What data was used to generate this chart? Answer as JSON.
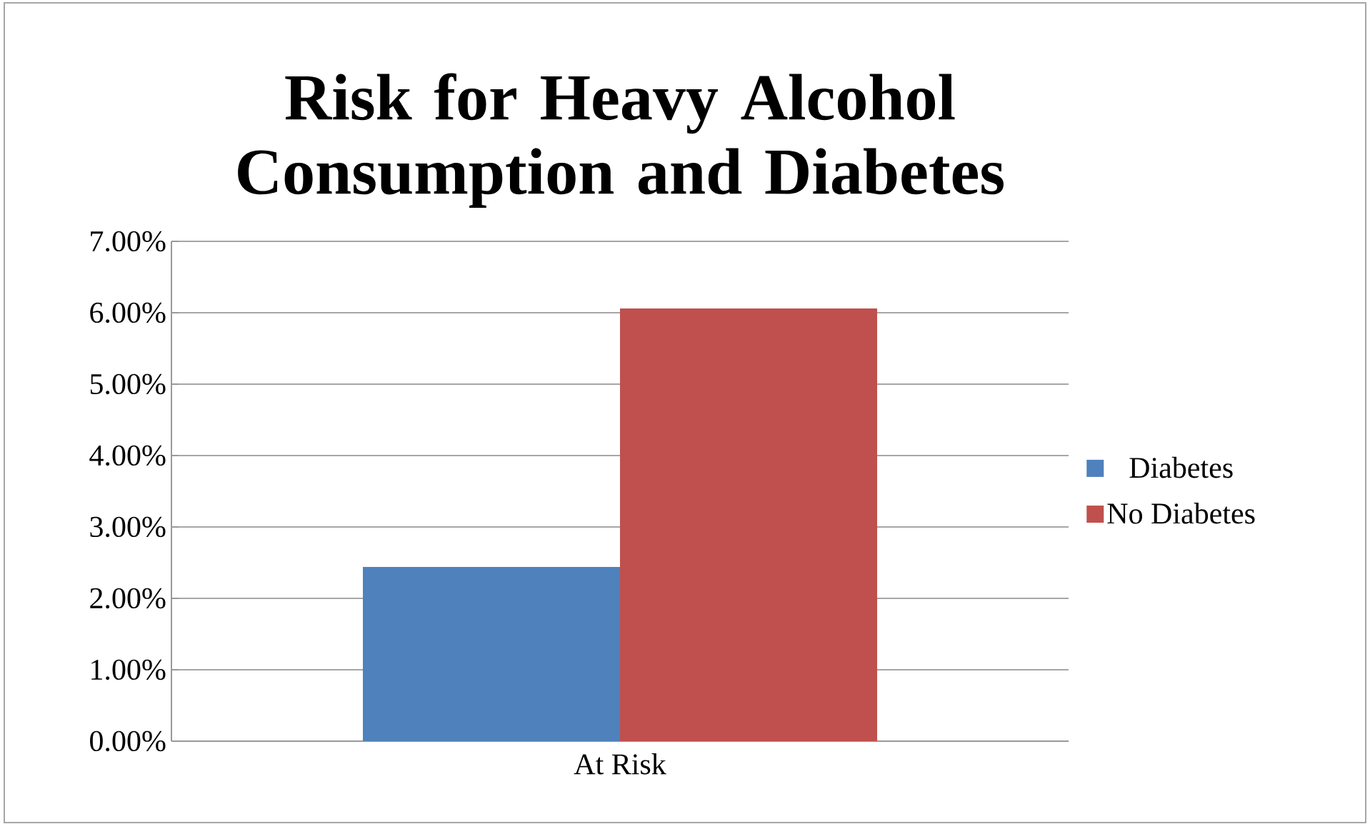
{
  "chart_data": {
    "type": "bar",
    "title": "Risk for Heavy Alcohol Consumption and Diabetes",
    "categories": [
      "At Risk"
    ],
    "series": [
      {
        "name": "Diabetes",
        "color": "#4f81bd",
        "values": [
          2.44
        ]
      },
      {
        "name": "No Diabetes",
        "color": "#c0504d",
        "values": [
          6.06
        ]
      }
    ],
    "ylim": [
      0,
      7
    ],
    "yticks": [
      {
        "value": 0,
        "label": "0.00%"
      },
      {
        "value": 1,
        "label": "1.00%"
      },
      {
        "value": 2,
        "label": "2.00%"
      },
      {
        "value": 3,
        "label": "3.00%"
      },
      {
        "value": 4,
        "label": "4.00%"
      },
      {
        "value": 5,
        "label": "5.00%"
      },
      {
        "value": 6,
        "label": "6.00%"
      },
      {
        "value": 7,
        "label": "7.00%"
      }
    ],
    "grid": "y",
    "legend": "right"
  }
}
